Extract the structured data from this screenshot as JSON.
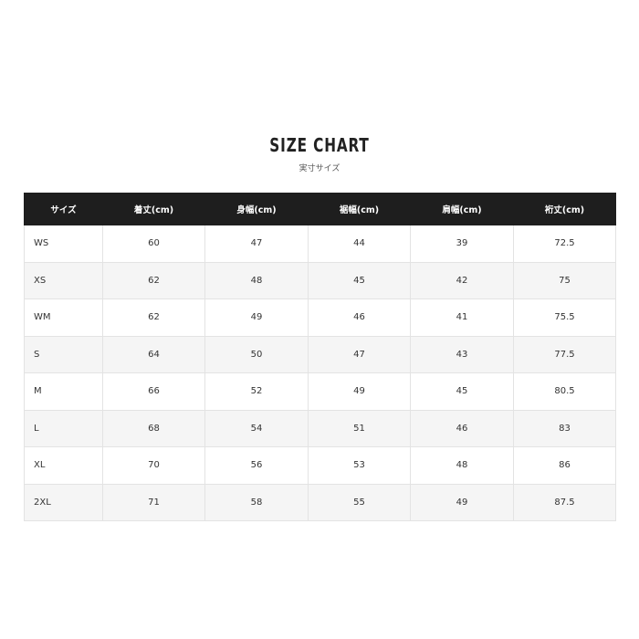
{
  "title": "SIZE CHART",
  "subtitle": "実寸サイズ",
  "table": {
    "headers": [
      "サイズ",
      "着丈(cm)",
      "身幅(cm)",
      "裾幅(cm)",
      "肩幅(cm)",
      "裄丈(cm)"
    ],
    "rows": [
      [
        "WS",
        "60",
        "47",
        "44",
        "39",
        "72.5"
      ],
      [
        "XS",
        "62",
        "48",
        "45",
        "42",
        "75"
      ],
      [
        "WM",
        "62",
        "49",
        "46",
        "41",
        "75.5"
      ],
      [
        "S",
        "64",
        "50",
        "47",
        "43",
        "77.5"
      ],
      [
        "M",
        "66",
        "52",
        "49",
        "45",
        "80.5"
      ],
      [
        "L",
        "68",
        "54",
        "51",
        "46",
        "83"
      ],
      [
        "XL",
        "70",
        "56",
        "53",
        "48",
        "86"
      ],
      [
        "2XL",
        "71",
        "58",
        "55",
        "49",
        "87.5"
      ]
    ]
  }
}
